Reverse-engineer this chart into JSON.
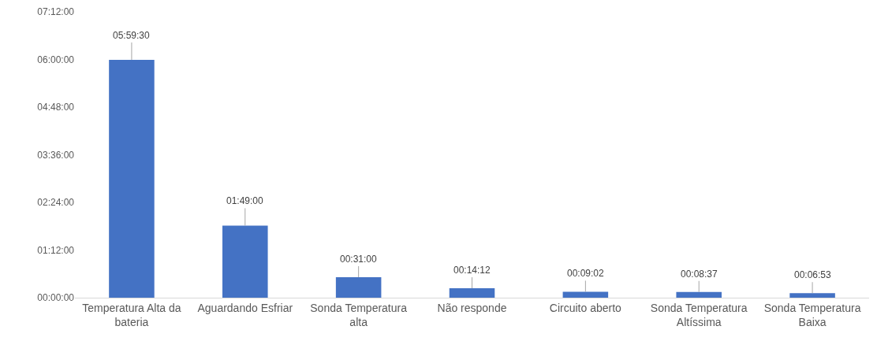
{
  "chart_data": {
    "type": "bar",
    "categories": [
      "Temperatura Alta da bateria",
      "Aguardando Esfriar",
      "Sonda Temperatura alta",
      "Não responde",
      "Circuito aberto",
      "Sonda Temperatura Altíssima",
      "Sonda Temperatura Baixa"
    ],
    "values": [
      5.991667,
      1.816667,
      0.516667,
      0.236667,
      0.150556,
      0.143611,
      0.114722
    ],
    "value_labels": [
      "05:59:30",
      "01:49:00",
      "00:31:00",
      "00:14:12",
      "00:09:02",
      "00:08:37",
      "00:06:53"
    ],
    "color": "#4472c4",
    "ylim": [
      0,
      7.2
    ],
    "yticks": [
      {
        "value": 0,
        "label": "00:00:00"
      },
      {
        "value": 1.2,
        "label": "01:12:00"
      },
      {
        "value": 2.4,
        "label": "02:24:00"
      },
      {
        "value": 3.6,
        "label": "03:36:00"
      },
      {
        "value": 4.8,
        "label": "04:48:00"
      },
      {
        "value": 6,
        "label": "06:00:00"
      },
      {
        "value": 7.2,
        "label": "07:12:00"
      }
    ],
    "grid": false,
    "legend": false
  }
}
